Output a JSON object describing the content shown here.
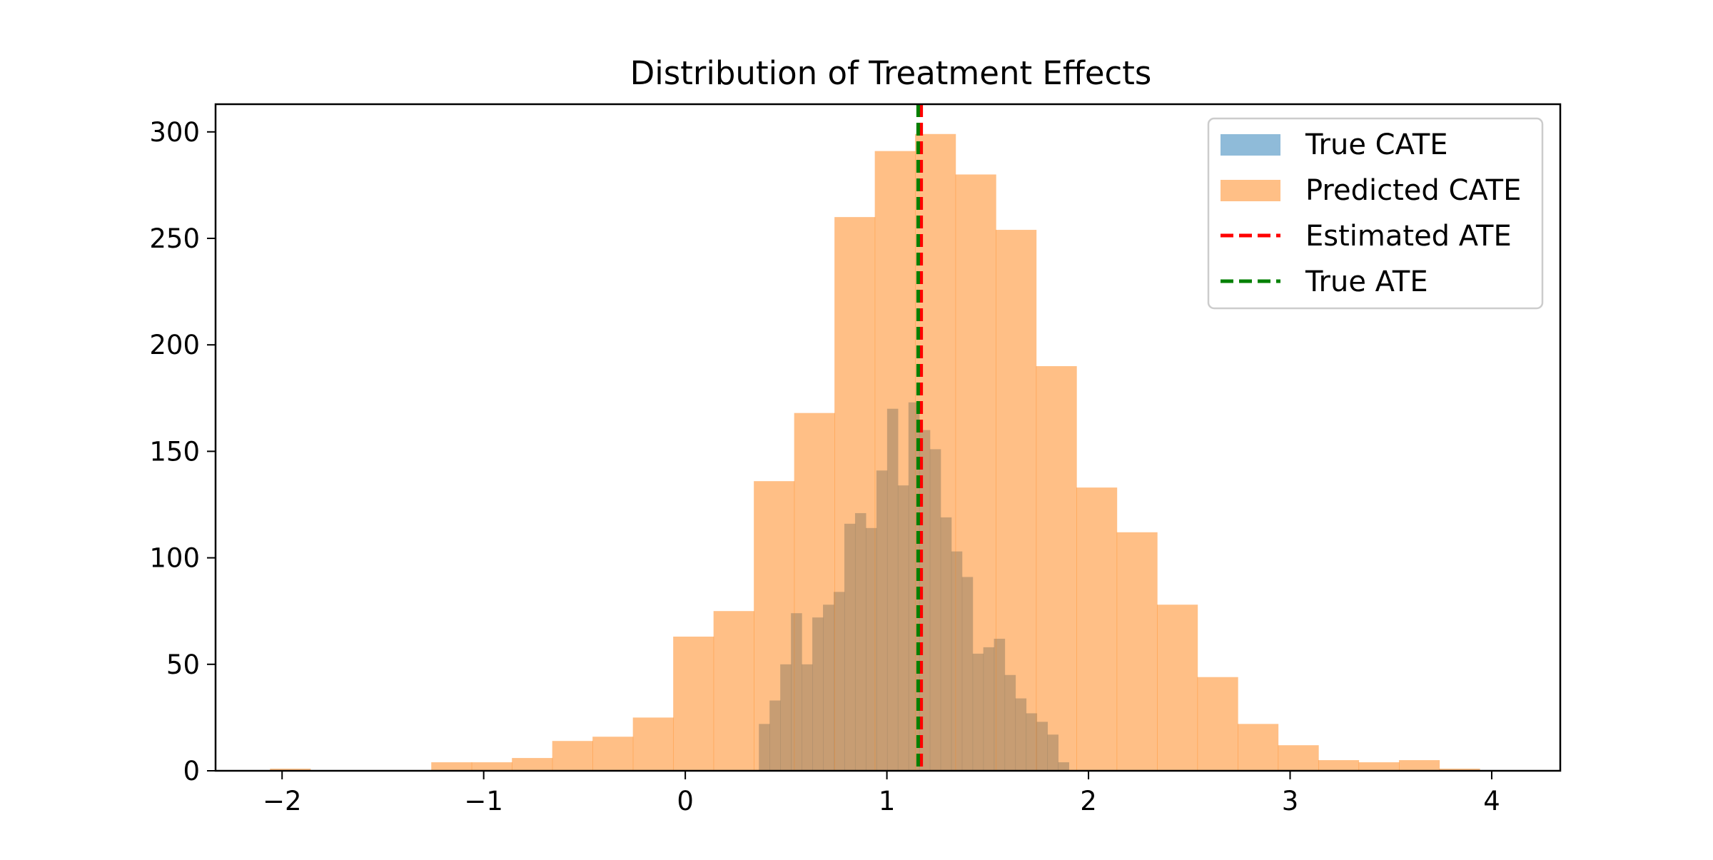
{
  "chart_data": {
    "type": "histogram",
    "title": "Distribution of Treatment Effects",
    "xlabel": "",
    "ylabel": "",
    "xlim": [
      -2.33,
      4.34
    ],
    "ylim": [
      0,
      313
    ],
    "x_ticks": [
      -2,
      -1,
      0,
      1,
      2,
      3,
      4
    ],
    "x_tick_labels": [
      "−2",
      "−1",
      "0",
      "1",
      "2",
      "3",
      "4"
    ],
    "y_ticks": [
      0,
      50,
      100,
      150,
      200,
      250,
      300
    ],
    "y_tick_labels": [
      "0",
      "50",
      "100",
      "150",
      "200",
      "250",
      "300"
    ],
    "grid": false,
    "legend_position": "upper right",
    "series": [
      {
        "name": "True CATE",
        "kind": "histogram",
        "color": "#1f77b4",
        "alpha": 0.5,
        "bin_edges": [
          0.365,
          0.418,
          0.471,
          0.524,
          0.577,
          0.63,
          0.683,
          0.736,
          0.789,
          0.842,
          0.895,
          0.948,
          1.001,
          1.054,
          1.107,
          1.16,
          1.213,
          1.266,
          1.319,
          1.372,
          1.425,
          1.478,
          1.531,
          1.584,
          1.637,
          1.69,
          1.743,
          1.796,
          1.849,
          1.902,
          1.955
        ],
        "counts": [
          22,
          33,
          50,
          74,
          50,
          72,
          78,
          84,
          116,
          121,
          114,
          141,
          170,
          134,
          173,
          160,
          151,
          119,
          103,
          91,
          55,
          58,
          62,
          45,
          34,
          27,
          23,
          17,
          4,
          0
        ]
      },
      {
        "name": "Predicted CATE",
        "kind": "histogram",
        "color": "#ff7f0e",
        "alpha": 0.5,
        "bin_edges": [
          -2.06,
          -1.86,
          -1.66,
          -1.46,
          -1.26,
          -1.06,
          -0.86,
          -0.66,
          -0.46,
          -0.26,
          -0.06,
          0.14,
          0.34,
          0.54,
          0.74,
          0.94,
          1.14,
          1.34,
          1.54,
          1.74,
          1.94,
          2.14,
          2.34,
          2.54,
          2.74,
          2.94,
          3.14,
          3.34,
          3.54,
          3.74,
          3.94,
          4.14
        ],
        "counts": [
          1,
          0,
          0,
          0,
          4,
          4,
          6,
          14,
          16,
          25,
          63,
          75,
          136,
          168,
          260,
          291,
          299,
          280,
          254,
          190,
          133,
          112,
          78,
          44,
          22,
          12,
          5,
          4,
          5,
          1,
          0
        ]
      },
      {
        "name": "Estimated ATE",
        "kind": "vline",
        "x": 1.17,
        "color": "#ff0000",
        "linestyle": "dashed"
      },
      {
        "name": "True ATE",
        "kind": "vline",
        "x": 1.155,
        "color": "#008000",
        "linestyle": "dashed"
      }
    ]
  }
}
